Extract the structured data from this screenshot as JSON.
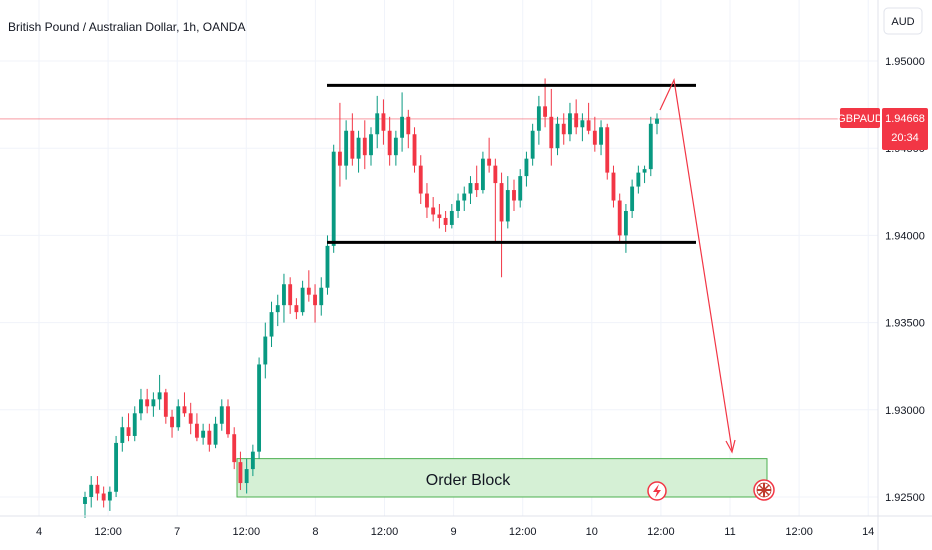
{
  "header": {
    "title": "British Pound / Australian Dollar, 1h, OANDA",
    "currency_button": "AUD"
  },
  "price_badge": {
    "symbol": "GBPAUD",
    "price": "1.94668",
    "countdown": "20:34",
    "color": "#f23645"
  },
  "colors": {
    "up": "#089981",
    "down": "#f23645",
    "order_block_fill": "#d5f0d5",
    "order_block_border": "#4caf50",
    "arrow": "#f23645",
    "range_lines": "#000000"
  },
  "annotations": {
    "order_block_label": "Order Block",
    "order_block_range": [
      1.925,
      1.9272
    ],
    "range_top": 1.9486,
    "range_bottom": 1.9396,
    "icons": [
      "lightning-icon",
      "uk-flag-icon"
    ]
  },
  "chart_data": {
    "type": "candlestick",
    "title": "British Pound / Australian Dollar, 1h, OANDA",
    "ylim": [
      1.9238,
      1.9532
    ],
    "y_ticks": [
      "1.95000",
      "1.94500",
      "1.94000",
      "1.93500",
      "1.93000",
      "1.92500"
    ],
    "x_ticks": [
      "4",
      "12:00",
      "7",
      "12:00",
      "8",
      "12:00",
      "9",
      "12:00",
      "10",
      "12:00",
      "11",
      "12:00",
      "14"
    ],
    "last_price": 1.94668,
    "grid": true,
    "candles": [
      [
        1.9246,
        1.9253,
        1.9238,
        1.925
      ],
      [
        1.925,
        1.9262,
        1.9244,
        1.9257
      ],
      [
        1.9257,
        1.9262,
        1.9248,
        1.9252
      ],
      [
        1.9252,
        1.9256,
        1.9244,
        1.9248
      ],
      [
        1.9248,
        1.9256,
        1.9242,
        1.9253
      ],
      [
        1.9253,
        1.9285,
        1.925,
        1.9281
      ],
      [
        1.9281,
        1.9296,
        1.9276,
        1.929
      ],
      [
        1.929,
        1.9298,
        1.9282,
        1.9285
      ],
      [
        1.9285,
        1.9302,
        1.9282,
        1.9298
      ],
      [
        1.9298,
        1.9312,
        1.9294,
        1.9306
      ],
      [
        1.9306,
        1.9312,
        1.9298,
        1.9302
      ],
      [
        1.9302,
        1.931,
        1.9296,
        1.9306
      ],
      [
        1.9306,
        1.932,
        1.93,
        1.931
      ],
      [
        1.931,
        1.9312,
        1.9292,
        1.9296
      ],
      [
        1.9296,
        1.93,
        1.9284,
        1.929
      ],
      [
        1.929,
        1.9306,
        1.9288,
        1.9302
      ],
      [
        1.9302,
        1.931,
        1.9296,
        1.9298
      ],
      [
        1.9298,
        1.9304,
        1.9286,
        1.9292
      ],
      [
        1.9292,
        1.9298,
        1.9282,
        1.9284
      ],
      [
        1.9284,
        1.9292,
        1.928,
        1.9288
      ],
      [
        1.9288,
        1.9292,
        1.9276,
        1.928
      ],
      [
        1.928,
        1.9296,
        1.9278,
        1.9292
      ],
      [
        1.9292,
        1.9306,
        1.9288,
        1.9302
      ],
      [
        1.9302,
        1.9306,
        1.9284,
        1.9286
      ],
      [
        1.9286,
        1.929,
        1.9266,
        1.927
      ],
      [
        1.927,
        1.9276,
        1.9254,
        1.9258
      ],
      [
        1.9258,
        1.9272,
        1.9252,
        1.9266
      ],
      [
        1.9266,
        1.928,
        1.9262,
        1.9276
      ],
      [
        1.9276,
        1.933,
        1.9272,
        1.9326
      ],
      [
        1.9326,
        1.935,
        1.9318,
        1.9342
      ],
      [
        1.9342,
        1.9362,
        1.9336,
        1.9356
      ],
      [
        1.9356,
        1.9366,
        1.9348,
        1.936
      ],
      [
        1.936,
        1.9378,
        1.935,
        1.9372
      ],
      [
        1.9372,
        1.9376,
        1.9355,
        1.936
      ],
      [
        1.936,
        1.9364,
        1.9352,
        1.9356
      ],
      [
        1.9356,
        1.9374,
        1.9354,
        1.937
      ],
      [
        1.937,
        1.938,
        1.9362,
        1.9366
      ],
      [
        1.9366,
        1.9372,
        1.935,
        1.936
      ],
      [
        1.936,
        1.9376,
        1.9354,
        1.937
      ],
      [
        1.937,
        1.94,
        1.9366,
        1.9394
      ],
      [
        1.9394,
        1.9452,
        1.939,
        1.9448
      ],
      [
        1.9448,
        1.9476,
        1.9428,
        1.944
      ],
      [
        1.944,
        1.9466,
        1.9432,
        1.946
      ],
      [
        1.946,
        1.947,
        1.944,
        1.9444
      ],
      [
        1.9444,
        1.946,
        1.9436,
        1.9456
      ],
      [
        1.9456,
        1.9466,
        1.9438,
        1.9446
      ],
      [
        1.9446,
        1.9462,
        1.944,
        1.9458
      ],
      [
        1.9458,
        1.948,
        1.945,
        1.947
      ],
      [
        1.947,
        1.9478,
        1.9452,
        1.946
      ],
      [
        1.946,
        1.9468,
        1.944,
        1.9446
      ],
      [
        1.9446,
        1.946,
        1.944,
        1.9456
      ],
      [
        1.9456,
        1.9482,
        1.9448,
        1.9468
      ],
      [
        1.9468,
        1.9472,
        1.945,
        1.9458
      ],
      [
        1.9458,
        1.9462,
        1.9436,
        1.944
      ],
      [
        1.944,
        1.9446,
        1.9418,
        1.9424
      ],
      [
        1.9424,
        1.943,
        1.941,
        1.9416
      ],
      [
        1.9416,
        1.9422,
        1.9408,
        1.9412
      ],
      [
        1.9412,
        1.9418,
        1.9404,
        1.941
      ],
      [
        1.941,
        1.9414,
        1.9402,
        1.9406
      ],
      [
        1.9406,
        1.9418,
        1.9404,
        1.9414
      ],
      [
        1.9414,
        1.9424,
        1.941,
        1.942
      ],
      [
        1.942,
        1.9428,
        1.9414,
        1.9424
      ],
      [
        1.9424,
        1.9434,
        1.9418,
        1.943
      ],
      [
        1.943,
        1.944,
        1.9422,
        1.9426
      ],
      [
        1.9426,
        1.9448,
        1.9424,
        1.9444
      ],
      [
        1.9444,
        1.9456,
        1.9436,
        1.944
      ],
      [
        1.944,
        1.9444,
        1.9396,
        1.943
      ],
      [
        1.943,
        1.9436,
        1.9376,
        1.9408
      ],
      [
        1.9408,
        1.9434,
        1.9404,
        1.9426
      ],
      [
        1.9426,
        1.9432,
        1.9414,
        1.942
      ],
      [
        1.942,
        1.9438,
        1.9416,
        1.9434
      ],
      [
        1.9434,
        1.9448,
        1.9428,
        1.9444
      ],
      [
        1.9444,
        1.9464,
        1.944,
        1.946
      ],
      [
        1.946,
        1.948,
        1.9452,
        1.9474
      ],
      [
        1.9474,
        1.949,
        1.9462,
        1.9468
      ],
      [
        1.9468,
        1.9484,
        1.944,
        1.945
      ],
      [
        1.945,
        1.9468,
        1.9446,
        1.9464
      ],
      [
        1.9464,
        1.947,
        1.9452,
        1.9458
      ],
      [
        1.9458,
        1.9476,
        1.9454,
        1.947
      ],
      [
        1.947,
        1.9478,
        1.9458,
        1.9462
      ],
      [
        1.9462,
        1.947,
        1.9454,
        1.9466
      ],
      [
        1.9466,
        1.9476,
        1.9458,
        1.946
      ],
      [
        1.946,
        1.9468,
        1.9448,
        1.9452
      ],
      [
        1.9452,
        1.9466,
        1.9446,
        1.9462
      ],
      [
        1.9462,
        1.9464,
        1.9432,
        1.9436
      ],
      [
        1.9436,
        1.944,
        1.9416,
        1.942
      ],
      [
        1.942,
        1.9424,
        1.9396,
        1.94
      ],
      [
        1.94,
        1.9418,
        1.939,
        1.9414
      ],
      [
        1.9414,
        1.9432,
        1.941,
        1.9428
      ],
      [
        1.9428,
        1.944,
        1.9424,
        1.9436
      ],
      [
        1.9436,
        1.944,
        1.943,
        1.9438
      ],
      [
        1.9438,
        1.9468,
        1.9434,
        1.9464
      ],
      [
        1.9464,
        1.947,
        1.9458,
        1.9467
      ]
    ]
  }
}
